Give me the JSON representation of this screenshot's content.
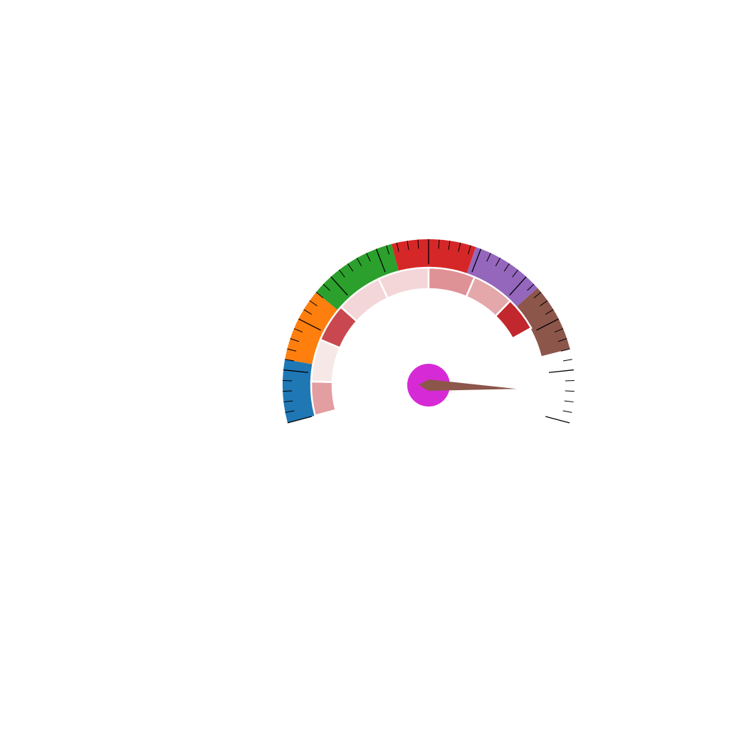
{
  "chart_data": {
    "type": "gauge",
    "title": "",
    "min": 0,
    "max": 100,
    "value": 94,
    "outer_bands": [
      {
        "from": 0,
        "to": 12,
        "color": "#1f77b4"
      },
      {
        "from": 12,
        "to": 26,
        "color": "#ff7f0e"
      },
      {
        "from": 26,
        "to": 43,
        "color": "#2ca02c"
      },
      {
        "from": 43,
        "to": 59,
        "color": "#d62728"
      },
      {
        "from": 59,
        "to": 73,
        "color": "#9467bd"
      },
      {
        "from": 73,
        "to": 86,
        "color": "#8c564b"
      }
    ],
    "inner_bands": [
      {
        "from": 0,
        "to": 8,
        "color": "#e39ea2"
      },
      {
        "from": 8,
        "to": 18,
        "color": "#f7e8e8"
      },
      {
        "from": 18,
        "to": 27,
        "color": "#c9484f"
      },
      {
        "from": 27,
        "to": 38,
        "color": "#f3d6d8"
      },
      {
        "from": 38,
        "to": 50,
        "color": "#f4d6d8"
      },
      {
        "from": 50,
        "to": 61,
        "color": "#df9296"
      },
      {
        "from": 61,
        "to": 71,
        "color": "#e4a7aa"
      },
      {
        "from": 71,
        "to": 79,
        "color": "#c1272d"
      }
    ],
    "ticks": {
      "major_step": 10,
      "minor_step": 2
    },
    "needle_color": "#8c564b",
    "hub_color": "#d62ad6"
  }
}
